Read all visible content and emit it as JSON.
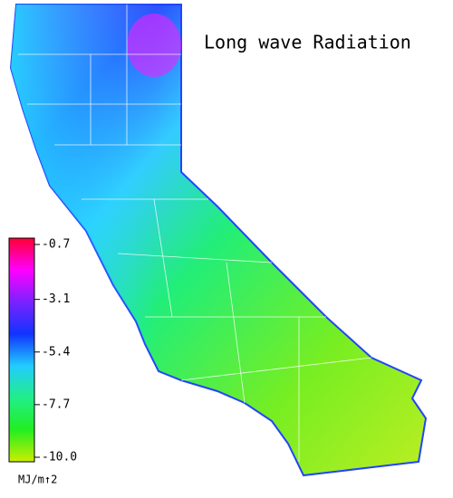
{
  "title": "Long wave Radiation",
  "colorbar": {
    "lim": [
      {
        "value": -10,
        "label": "-10.0"
      },
      -0.7
    ],
    "ticks": [
      -0.7,
      -3.1,
      -5.4,
      -7.7,
      {
        "value": -10,
        "label": "-10.0"
      }
    ],
    "colors": [
      "#ff0033",
      "#ff00ff",
      "#7a22ff",
      "#1133ff",
      "#22ccff",
      "#22ee88",
      "#22ee22",
      "#ccee00"
    ],
    "unit": "MJ/m↑2"
  }
}
